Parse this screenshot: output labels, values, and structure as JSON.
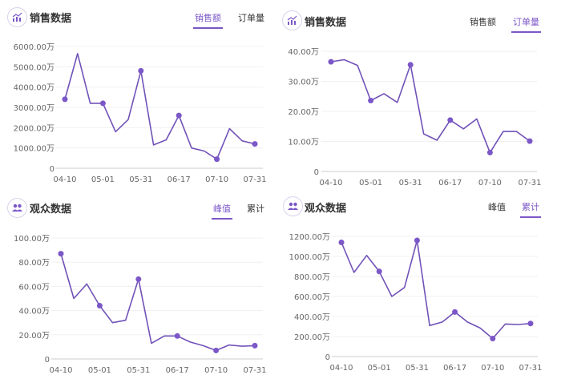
{
  "colors": {
    "accent": "#7b57c8",
    "line": "#7152b8",
    "grid": "#f0f0f0",
    "axis": "#cccccc",
    "text": "#333333",
    "axis_text": "#666666"
  },
  "panels": [
    {
      "title": "销售数据",
      "icon": "chart-trend-icon",
      "tabs": [
        {
          "label": "销售额",
          "active": true
        },
        {
          "label": "订单量",
          "active": false
        }
      ]
    },
    {
      "title": "销售数据",
      "icon": "chart-trend-icon",
      "tabs": [
        {
          "label": "销售额",
          "active": false
        },
        {
          "label": "订单量",
          "active": true
        }
      ]
    },
    {
      "title": "观众数据",
      "icon": "audience-icon",
      "tabs": [
        {
          "label": "峰值",
          "active": true
        },
        {
          "label": "累计",
          "active": false
        }
      ]
    },
    {
      "title": "观众数据",
      "icon": "audience-icon",
      "tabs": [
        {
          "label": "峰值",
          "active": false
        },
        {
          "label": "累计",
          "active": true
        }
      ]
    }
  ],
  "chart_data": [
    {
      "type": "line",
      "title": "销售数据 - 销售额",
      "xlabel": "",
      "ylabel": "",
      "x_tick_labels": [
        "04-10",
        "05-01",
        "05-31",
        "06-17",
        "07-10",
        "07-31"
      ],
      "x_tick_indices": [
        0,
        3,
        6,
        9,
        12,
        15
      ],
      "y_tick_labels": [
        "0",
        "1000.00万",
        "2000.00万",
        "3000.00万",
        "4000.00万",
        "5000.00万",
        "6000.00万"
      ],
      "ylim": [
        0,
        6000
      ],
      "grid": true,
      "unit": "万",
      "values": [
        3400,
        5650,
        3200,
        3200,
        1800,
        2400,
        4800,
        1150,
        1400,
        2600,
        1000,
        850,
        450,
        1950,
        1350,
        1200
      ],
      "marker_indices": [
        0,
        3,
        6,
        9,
        12,
        15
      ]
    },
    {
      "type": "line",
      "title": "销售数据 - 订单量",
      "xlabel": "",
      "ylabel": "",
      "x_tick_labels": [
        "04-10",
        "05-01",
        "05-31",
        "06-17",
        "07-10",
        "07-31"
      ],
      "x_tick_indices": [
        0,
        3,
        6,
        9,
        12,
        15
      ],
      "y_tick_labels": [
        "0",
        "10.00万",
        "20.00万",
        "30.00万",
        "40.00万"
      ],
      "ylim": [
        0,
        40
      ],
      "grid": true,
      "unit": "万",
      "values": [
        36.5,
        37.2,
        35.3,
        23.6,
        25.9,
        23.0,
        35.5,
        12.5,
        10.4,
        17.1,
        14.2,
        17.5,
        6.3,
        13.3,
        13.3,
        10.1
      ],
      "marker_indices": [
        0,
        3,
        6,
        9,
        12,
        15
      ]
    },
    {
      "type": "line",
      "title": "观众数据 - 峰值",
      "xlabel": "",
      "ylabel": "",
      "x_tick_labels": [
        "04-10",
        "05-01",
        "05-31",
        "06-17",
        "07-10",
        "07-31"
      ],
      "x_tick_indices": [
        0,
        3,
        6,
        9,
        12,
        15
      ],
      "y_tick_labels": [
        "0",
        "20.00万",
        "40.00万",
        "60.00万",
        "80.00万",
        "100.00万"
      ],
      "ylim": [
        0,
        100
      ],
      "grid": true,
      "unit": "万",
      "values": [
        87,
        50,
        62,
        44,
        30,
        32,
        66,
        13,
        19,
        19,
        14,
        11,
        7,
        11.5,
        10.5,
        11
      ],
      "marker_indices": [
        0,
        3,
        6,
        9,
        12,
        15
      ]
    },
    {
      "type": "line",
      "title": "观众数据 - 累计",
      "xlabel": "",
      "ylabel": "",
      "x_tick_labels": [
        "04-10",
        "05-01",
        "05-31",
        "06-17",
        "07-10",
        "07-31"
      ],
      "x_tick_indices": [
        0,
        3,
        6,
        9,
        12,
        15
      ],
      "y_tick_labels": [
        "0",
        "200.00万",
        "400.00万",
        "600.00万",
        "800.00万",
        "1000.00万",
        "1200.00万"
      ],
      "ylim": [
        0,
        1200
      ],
      "grid": true,
      "unit": "万",
      "values": [
        1140,
        840,
        1010,
        850,
        600,
        690,
        1160,
        310,
        345,
        445,
        345,
        285,
        180,
        325,
        320,
        330
      ],
      "marker_indices": [
        0,
        3,
        6,
        9,
        12,
        15
      ]
    }
  ]
}
